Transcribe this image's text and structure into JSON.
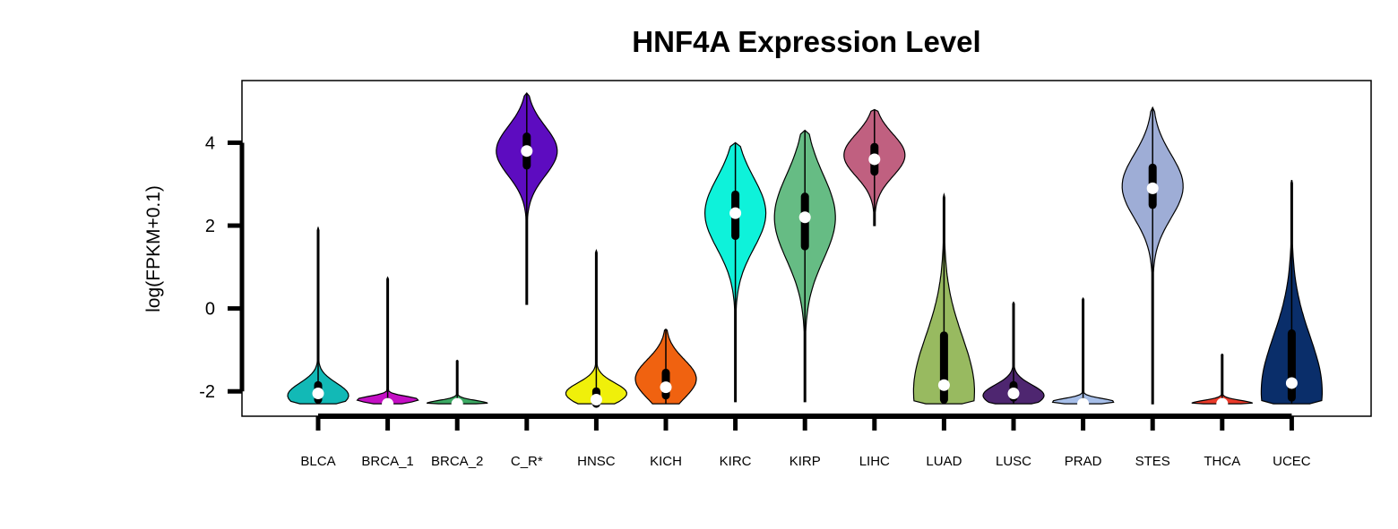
{
  "chart_data": {
    "type": "violin",
    "title": "HNF4A Expression Level",
    "xlabel": "",
    "ylabel": "log(FPKM+0.1)",
    "ylim": [
      -2.6,
      5.5
    ],
    "yticks": [
      4,
      2,
      0,
      -2
    ],
    "ytick_labels": [
      "4",
      "2",
      "0",
      "-2"
    ],
    "categories": [
      "BLCA",
      "BRCA_1",
      "BRCA_2",
      "C_R*",
      "HNSC",
      "KICH",
      "KIRC",
      "KIRP",
      "LIHC",
      "LUAD",
      "LUSC",
      "PRAD",
      "STES",
      "THCA",
      "UCEC"
    ],
    "colors": [
      "#12b9b6",
      "#c40fc4",
      "#3caa63",
      "#5d0cc0",
      "#f0f00a",
      "#f06210",
      "#0ef2da",
      "#66bc84",
      "#c06080",
      "#98ba60",
      "#4e2670",
      "#a6bee8",
      "#9eadd6",
      "#ea3a2a",
      "#0a2e6a"
    ],
    "series": [
      {
        "name": "BLCA",
        "min": -2.3,
        "max": 1.95,
        "q1": -2.2,
        "q3": -1.85,
        "median": -2.05,
        "peak": -2.1
      },
      {
        "name": "BRCA_1",
        "min": -2.3,
        "max": 0.75,
        "q1": -2.3,
        "q3": -2.25,
        "median": -2.3,
        "peak": -2.2
      },
      {
        "name": "BRCA_2",
        "min": -2.3,
        "max": -1.25,
        "q1": -2.3,
        "q3": -2.28,
        "median": -2.3,
        "peak": -2.3
      },
      {
        "name": "C_R*",
        "min": 0.1,
        "max": 5.2,
        "q1": 3.45,
        "q3": 4.15,
        "median": 3.8,
        "peak": 3.8
      },
      {
        "name": "HNSC",
        "min": -2.3,
        "max": 1.4,
        "q1": -2.3,
        "q3": -2.0,
        "median": -2.2,
        "peak": -2.05
      },
      {
        "name": "KICH",
        "min": -2.3,
        "max": -0.5,
        "q1": -2.1,
        "q3": -1.55,
        "median": -1.9,
        "peak": -1.7
      },
      {
        "name": "KIRC",
        "min": -2.25,
        "max": 4.0,
        "q1": 1.75,
        "q3": 2.75,
        "median": 2.3,
        "peak": 2.3
      },
      {
        "name": "KIRP",
        "min": -2.25,
        "max": 4.3,
        "q1": 1.5,
        "q3": 2.7,
        "median": 2.2,
        "peak": 2.2
      },
      {
        "name": "LIHC",
        "min": 2.0,
        "max": 4.8,
        "q1": 3.3,
        "q3": 3.9,
        "median": 3.6,
        "peak": 3.7
      },
      {
        "name": "LUAD",
        "min": -2.3,
        "max": 2.75,
        "q1": -2.2,
        "q3": -0.65,
        "median": -1.85,
        "peak": -2.0
      },
      {
        "name": "LUSC",
        "min": -2.3,
        "max": 0.15,
        "q1": -2.15,
        "q3": -1.85,
        "median": -2.05,
        "peak": -2.1
      },
      {
        "name": "PRAD",
        "min": -2.3,
        "max": 0.25,
        "q1": -2.3,
        "q3": -2.25,
        "median": -2.3,
        "peak": -2.25
      },
      {
        "name": "STES",
        "min": -2.3,
        "max": 4.85,
        "q1": 2.5,
        "q3": 3.4,
        "median": 2.9,
        "peak": 2.95
      },
      {
        "name": "THCA",
        "min": -2.3,
        "max": -1.1,
        "q1": -2.3,
        "q3": -2.28,
        "median": -2.3,
        "peak": -2.3
      },
      {
        "name": "UCEC",
        "min": -2.3,
        "max": 3.1,
        "q1": -2.15,
        "q3": -0.6,
        "median": -1.8,
        "peak": -2.0
      }
    ],
    "grid": false,
    "legend": "none"
  }
}
